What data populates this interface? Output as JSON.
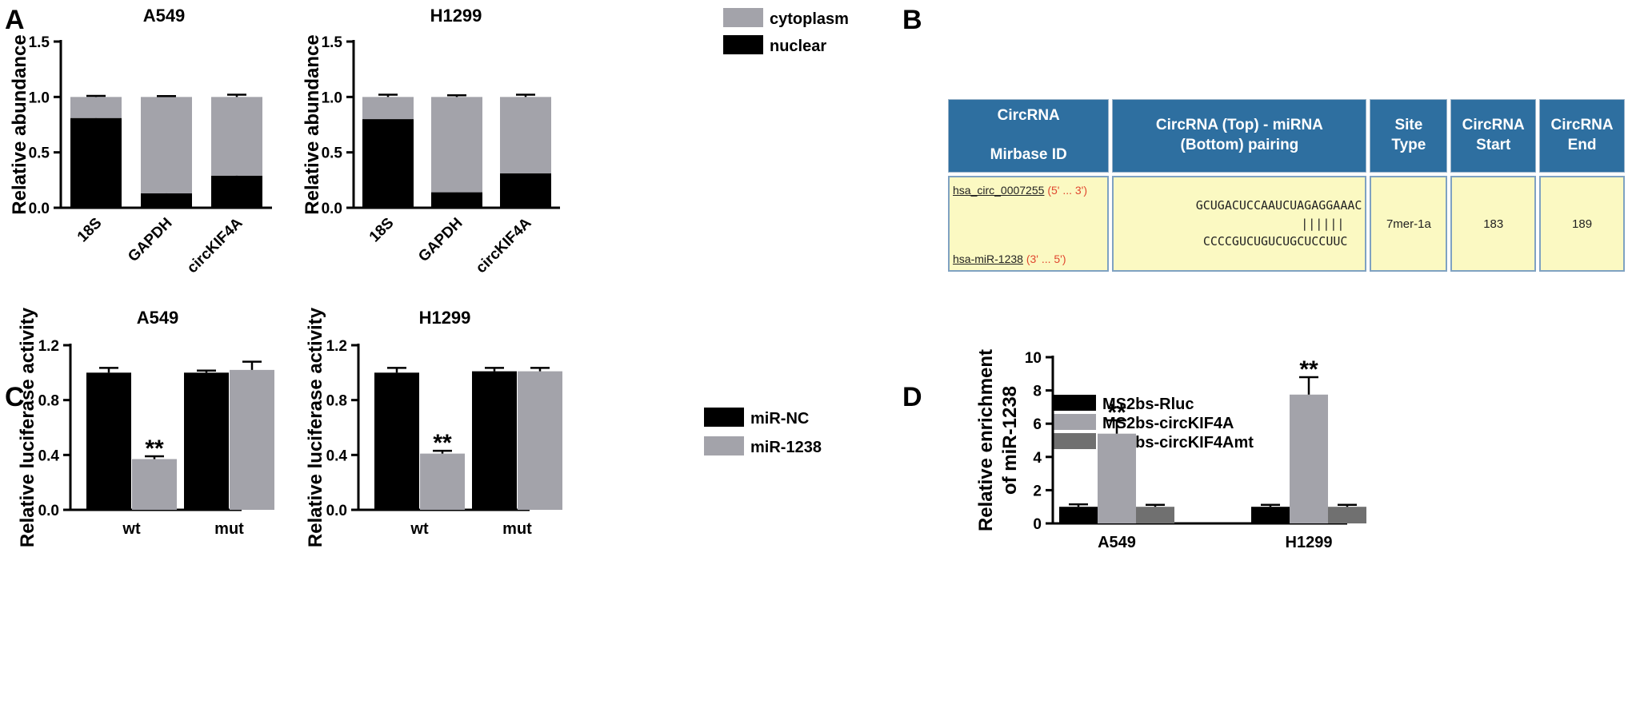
{
  "panels": {
    "A": {
      "label": "A",
      "legend": [
        "cytoplasm",
        "nuclear"
      ],
      "colors": {
        "cytoplasm": "#a3a3aa",
        "nuclear": "#000000"
      }
    },
    "B": {
      "label": "B"
    },
    "C": {
      "label": "C",
      "legend": [
        "miR-NC",
        "miR-1238"
      ],
      "colors": {
        "miR-NC": "#000000",
        "miR-1238": "#a3a3aa"
      }
    },
    "D": {
      "label": "D",
      "legend": [
        "MS2bs-Rluc",
        "MS2bs-circKIF4A",
        "MS2bs-circKIF4Amt"
      ],
      "colors": {
        "MS2bs-Rluc": "#000000",
        "MS2bs-circKIF4A": "#a3a3aa",
        "MS2bs-circKIF4Amt": "#707070"
      }
    }
  },
  "table": {
    "headers": {
      "id_line1": "CircRNA",
      "id_line2": "Mirbase ID",
      "pairing_line1": "CircRNA (Top) - miRNA",
      "pairing_line2": "(Bottom) pairing",
      "site_line1": "Site",
      "site_line2": "Type",
      "start_line1": "CircRNA",
      "start_line2": "Start",
      "end_line1": "CircRNA",
      "end_line2": "End"
    },
    "row": {
      "circ_name": "hsa_circ_0007255",
      "circ_dir": "(5' ... 3')",
      "mir_name": "hsa-miR-1238",
      "mir_dir": "(3' ... 5')",
      "top_seq": "GCUGACUCCAAUCUAGAGGAAAC",
      "pair_marks": "||||||",
      "bottom_seq": "CCCCGUCUGUCUGCUCCUUC",
      "site_type": "7mer-1a",
      "start": "183",
      "end": "189"
    }
  },
  "chart_data": [
    {
      "panel": "A",
      "type": "bar",
      "stacked": true,
      "title": "A549",
      "ylabel": "Relative abundance",
      "ylim": [
        0,
        1.5
      ],
      "yticks": [
        "0.0",
        "0.5",
        "1.0",
        "1.5"
      ],
      "categories": [
        "18S",
        "GAPDH",
        "circKIF4A"
      ],
      "series": [
        {
          "name": "nuclear",
          "values": [
            0.81,
            0.13,
            0.29
          ],
          "errors": [
            0.02,
            0.015,
            0.025
          ]
        },
        {
          "name": "cytoplasm",
          "values": [
            0.19,
            0.87,
            0.71
          ],
          "errors": [
            0.01,
            0.008,
            0.02
          ]
        }
      ]
    },
    {
      "panel": "A",
      "type": "bar",
      "stacked": true,
      "title": "H1299",
      "ylabel": "Relative abundance",
      "ylim": [
        0,
        1.5
      ],
      "yticks": [
        "0.0",
        "0.5",
        "1.0",
        "1.5"
      ],
      "categories": [
        "18S",
        "GAPDH",
        "circKIF4A"
      ],
      "series": [
        {
          "name": "nuclear",
          "values": [
            0.8,
            0.14,
            0.31
          ],
          "errors": [
            0.025,
            0.02,
            0.025
          ]
        },
        {
          "name": "cytoplasm",
          "values": [
            0.2,
            0.86,
            0.69
          ],
          "errors": [
            0.02,
            0.015,
            0.02
          ]
        }
      ]
    },
    {
      "panel": "C",
      "type": "bar",
      "title": "A549",
      "ylabel": "Relative luciferase activity",
      "ylim": [
        0,
        1.2
      ],
      "yticks": [
        "0.0",
        "0.4",
        "0.8",
        "1.2"
      ],
      "categories": [
        "wt",
        "mut"
      ],
      "series": [
        {
          "name": "miR-NC",
          "values": [
            1.0,
            1.0
          ],
          "errors": [
            0.035,
            0.015
          ]
        },
        {
          "name": "miR-1238",
          "values": [
            0.37,
            1.02
          ],
          "errors": [
            0.02,
            0.06
          ]
        }
      ],
      "annotations": [
        {
          "category": "wt",
          "series": "miR-1238",
          "text": "**"
        }
      ]
    },
    {
      "panel": "C",
      "type": "bar",
      "title": "H1299",
      "ylabel": "Relative luciferase activity",
      "ylim": [
        0,
        1.2
      ],
      "yticks": [
        "0.0",
        "0.4",
        "0.8",
        "1.2"
      ],
      "categories": [
        "wt",
        "mut"
      ],
      "series": [
        {
          "name": "miR-NC",
          "values": [
            1.0,
            1.01
          ],
          "errors": [
            0.035,
            0.025
          ]
        },
        {
          "name": "miR-1238",
          "values": [
            0.41,
            1.01
          ],
          "errors": [
            0.02,
            0.025
          ]
        }
      ],
      "annotations": [
        {
          "category": "wt",
          "series": "miR-1238",
          "text": "**"
        }
      ]
    },
    {
      "panel": "D",
      "type": "bar",
      "title": "",
      "ylabel_lines": [
        "Relative enrichment",
        "of miR-1238"
      ],
      "ylim": [
        0,
        10
      ],
      "yticks": [
        "0",
        "2",
        "4",
        "6",
        "8",
        "10"
      ],
      "categories": [
        "A549",
        "H1299"
      ],
      "series": [
        {
          "name": "MS2bs-Rluc",
          "values": [
            1.0,
            1.0
          ],
          "errors": [
            0.15,
            0.12
          ]
        },
        {
          "name": "MS2bs-circKIF4A",
          "values": [
            5.4,
            7.75
          ],
          "errors": [
            0.8,
            1.05
          ]
        },
        {
          "name": "MS2bs-circKIF4Amt",
          "values": [
            1.0,
            1.0
          ],
          "errors": [
            0.12,
            0.12
          ]
        }
      ],
      "annotations": [
        {
          "category": "A549",
          "series": "MS2bs-circKIF4A",
          "text": "**"
        },
        {
          "category": "H1299",
          "series": "MS2bs-circKIF4A",
          "text": "**"
        }
      ]
    }
  ]
}
